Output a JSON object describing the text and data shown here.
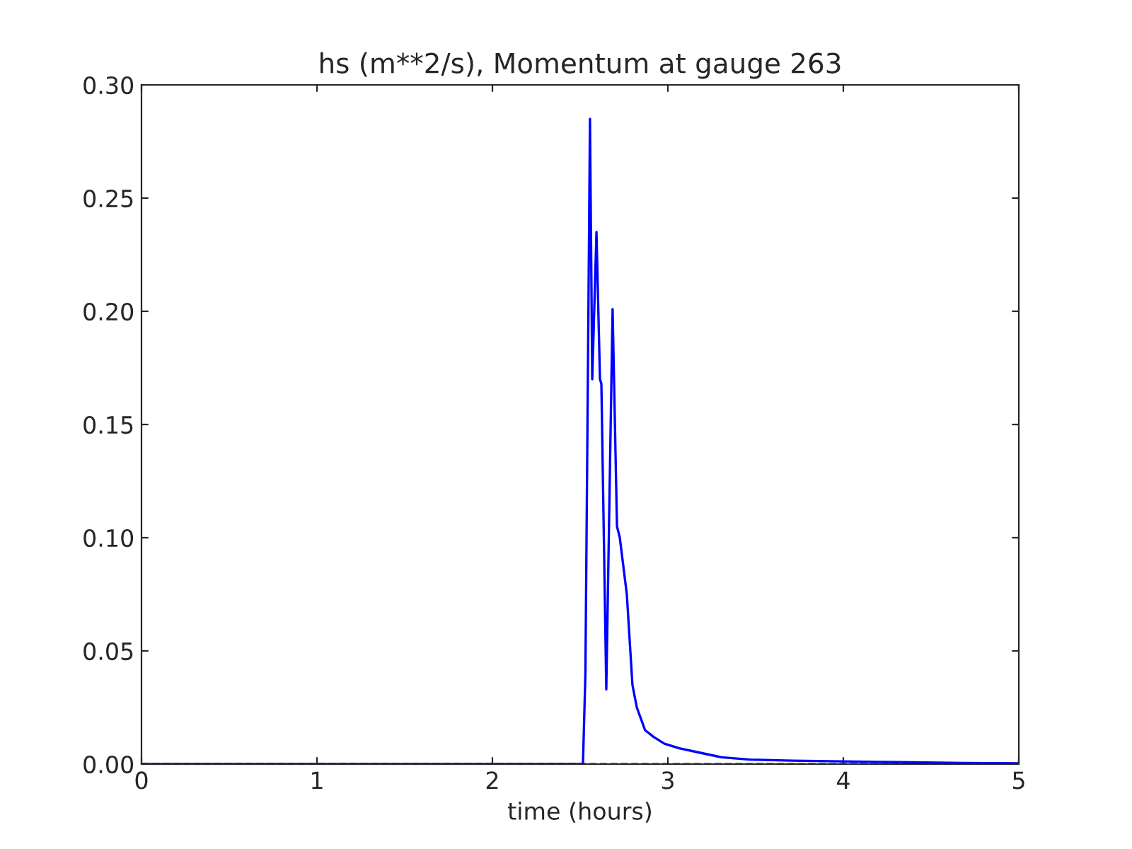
{
  "chart_data": {
    "type": "line",
    "title": "hs (m**2/s), Momentum at gauge 263",
    "xlabel": "time (hours)",
    "x": [
      0,
      2.5,
      2.516,
      2.53,
      2.545,
      2.556,
      2.569,
      2.593,
      2.613,
      2.621,
      2.649,
      2.685,
      2.71,
      2.726,
      2.766,
      2.798,
      2.823,
      2.87,
      2.919,
      2.98,
      3.065,
      3.185,
      3.306,
      3.468,
      3.71,
      4.19,
      4.68,
      5
    ],
    "series": [
      {
        "color": "#0000ff",
        "values": [
          0,
          0,
          0,
          0.04,
          0.18,
          0.285,
          0.17,
          0.235,
          0.17,
          0.168,
          0.033,
          0.201,
          0.105,
          0.1,
          0.075,
          0.035,
          0.025,
          0.015,
          0.012,
          0.009,
          0.007,
          0.005,
          0.003,
          0.002,
          0.0015,
          0.001,
          0.0005,
          0.0003
        ]
      }
    ],
    "xlim": [
      0,
      5
    ],
    "xticks": [
      0,
      1,
      2,
      3,
      4,
      5
    ],
    "ylim": [
      0,
      0.3
    ],
    "yticks": [
      {
        "value": 0,
        "label": "0.00"
      },
      {
        "value": 0.05,
        "label": "0.05"
      },
      {
        "value": 0.1,
        "label": "0.10"
      },
      {
        "value": 0.15,
        "label": "0.15"
      },
      {
        "value": 0.2,
        "label": "0.20"
      },
      {
        "value": 0.25,
        "label": "0.25"
      },
      {
        "value": 0.3,
        "label": "0.30"
      }
    ],
    "ref_lines": [
      {
        "axis": "y",
        "value": 0,
        "color": "#000000",
        "line_style": "dashed"
      }
    ],
    "grid": false,
    "legend": false
  }
}
